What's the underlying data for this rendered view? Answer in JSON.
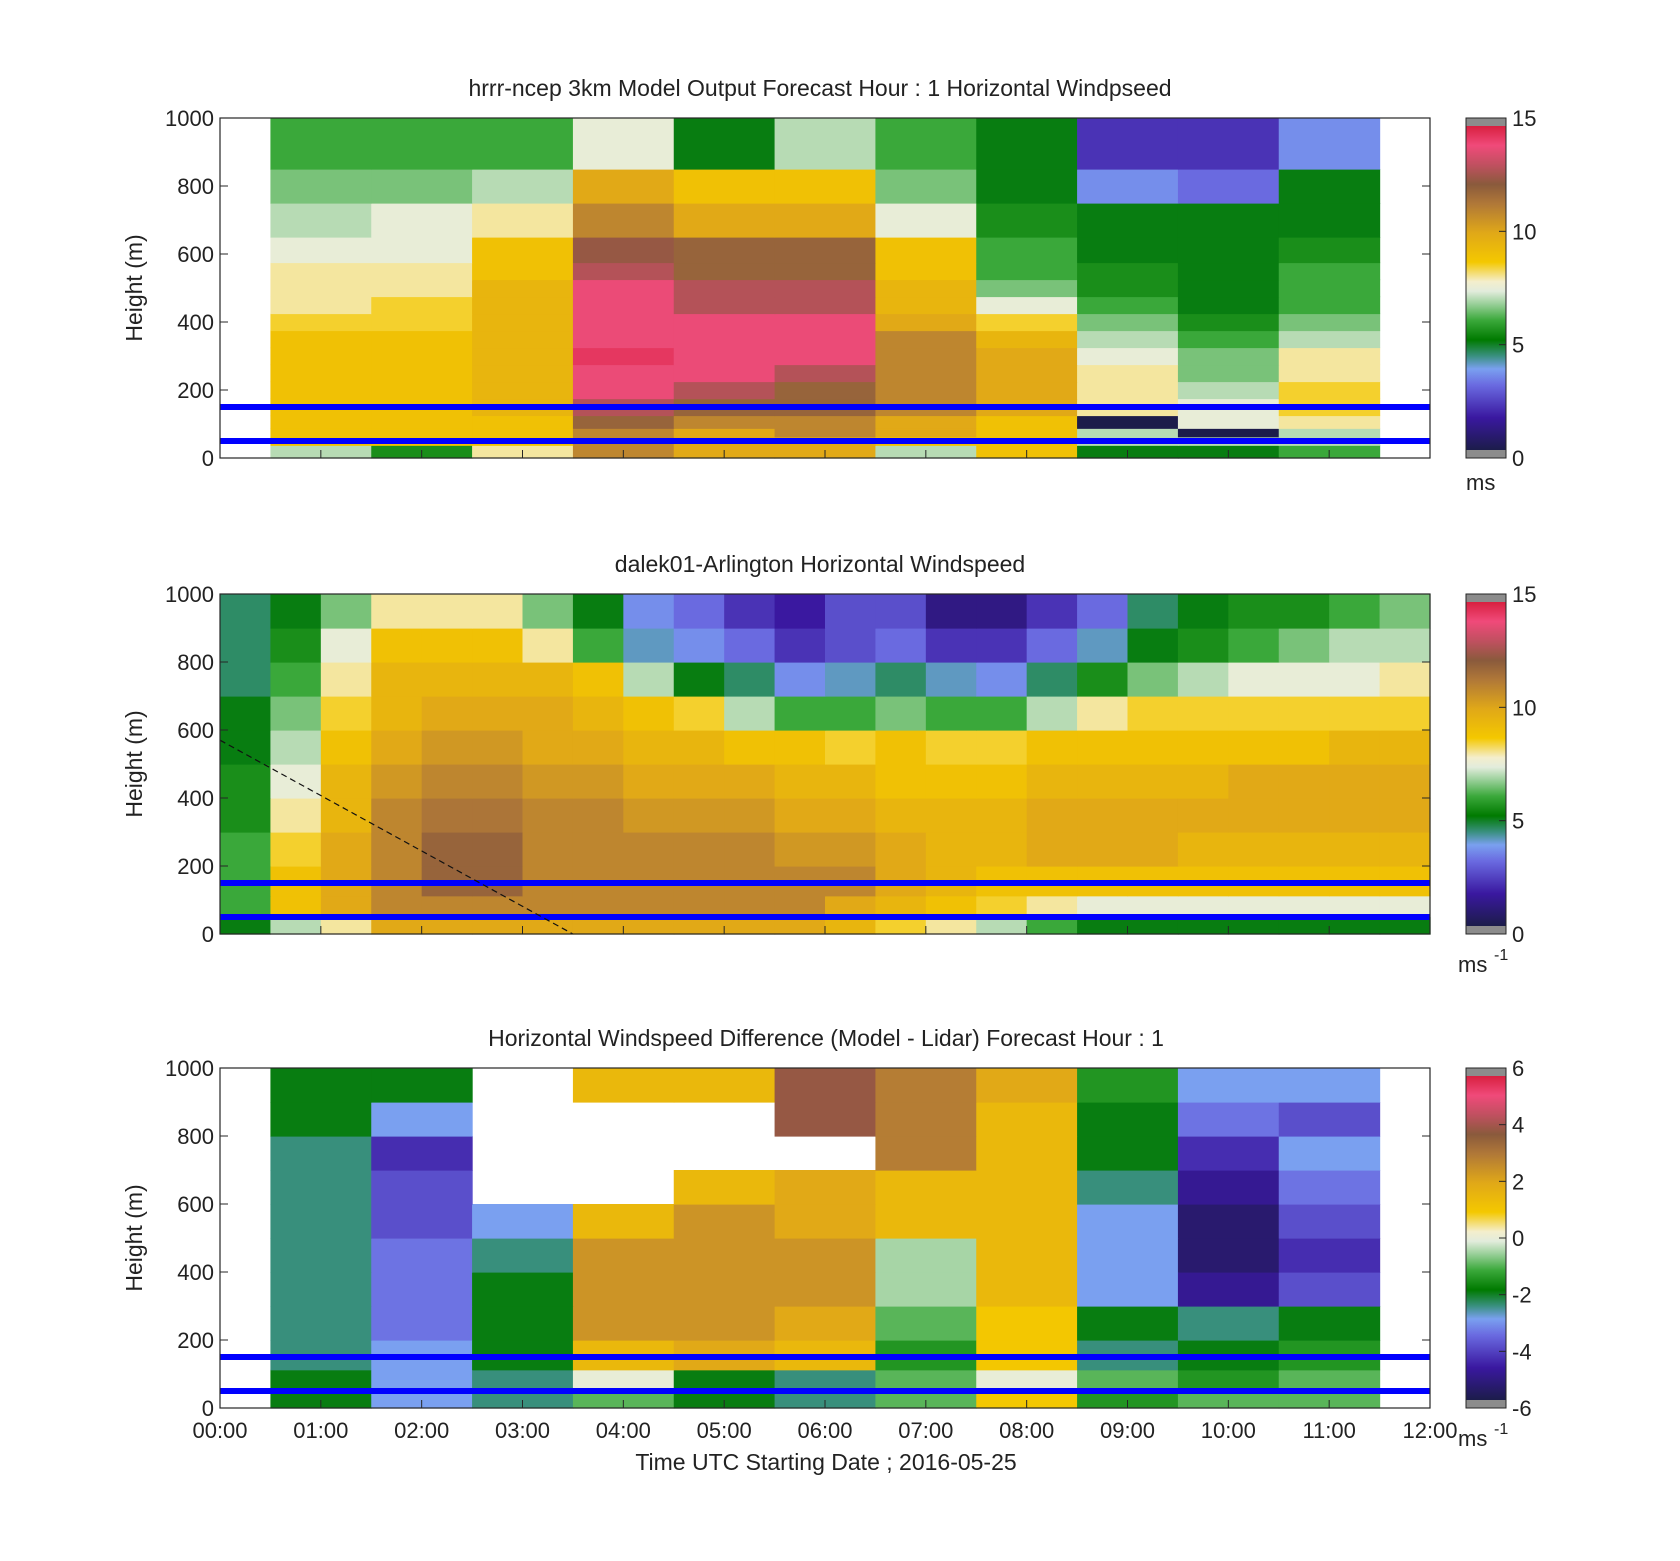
{
  "figure": {
    "xlabel": "Time UTC  Starting Date ; 2016-05-25",
    "xticks": [
      "00:00",
      "01:00",
      "02:00",
      "03:00",
      "04:00",
      "05:00",
      "06:00",
      "07:00",
      "08:00",
      "09:00",
      "10:00",
      "11:00",
      "12:00"
    ]
  },
  "chart_data": [
    {
      "type": "heatmap",
      "title": "hrrr-ncep 3km Model Output   Forecast Hour : 1 Horizontal Windpseed",
      "ylabel": "Height (m)",
      "ylim": [
        0,
        1000
      ],
      "yticks": [
        0,
        200,
        400,
        600,
        800,
        1000
      ],
      "xlim_hours": [
        0,
        12
      ],
      "colorbar": {
        "min": 0,
        "max": 15,
        "ticks": [
          0,
          5,
          10,
          15
        ],
        "unit_label": "ms",
        "unit_sup": ""
      },
      "reference_lines_m": [
        50,
        150
      ],
      "reference_line_color": "#0000ff",
      "x_hours": [
        1,
        2,
        3,
        4,
        5,
        6,
        7,
        8,
        9,
        10,
        11
      ],
      "heights_m": [
        25,
        50,
        75,
        100,
        150,
        200,
        250,
        300,
        350,
        400,
        450,
        500,
        550,
        600,
        700,
        800,
        900
      ],
      "values": [
        [
          7,
          5.5,
          8,
          11,
          10,
          10,
          7,
          9,
          5,
          5,
          6
        ],
        [
          9,
          9,
          9,
          11,
          10,
          10,
          9,
          9,
          7,
          7,
          7
        ],
        [
          9,
          9,
          9,
          11,
          10,
          11,
          10,
          9,
          7,
          0,
          7
        ],
        [
          9,
          9,
          9,
          12,
          11,
          11,
          10,
          9,
          0,
          7.5,
          8
        ],
        [
          9,
          9,
          9.5,
          13,
          12,
          12,
          11,
          10,
          8,
          7.5,
          8.5
        ],
        [
          9,
          9,
          9.5,
          14,
          13,
          12,
          11,
          10,
          8,
          7,
          8.5
        ],
        [
          9,
          9,
          9.5,
          14,
          14,
          13,
          11,
          10,
          8,
          6.5,
          8
        ],
        [
          9,
          9,
          9.5,
          14.5,
          14,
          14,
          11,
          10,
          7.5,
          6.5,
          8
        ],
        [
          9,
          9,
          9.5,
          14,
          14,
          14,
          11,
          9.5,
          7,
          6,
          7
        ],
        [
          8.5,
          8.5,
          9.5,
          14,
          14,
          14,
          10,
          8.5,
          6.5,
          5.5,
          6.5
        ],
        [
          8,
          8.5,
          9.5,
          14,
          13,
          13,
          9.5,
          7.5,
          6,
          5,
          6
        ],
        [
          8,
          8,
          9.5,
          14,
          13,
          13,
          9.5,
          6.5,
          5.5,
          5,
          6
        ],
        [
          8,
          8,
          9,
          13,
          12,
          12,
          9,
          6,
          5.5,
          5,
          6
        ],
        [
          7.5,
          7.5,
          9,
          12.5,
          12,
          12,
          9,
          6,
          5,
          5,
          5.5
        ],
        [
          7,
          7.5,
          8,
          11,
          10,
          10,
          7.5,
          5.5,
          5,
          5,
          5
        ],
        [
          6.5,
          6.5,
          7,
          10,
          9,
          9,
          6.5,
          5,
          3.5,
          3,
          5
        ],
        [
          6,
          6,
          6,
          7.5,
          5,
          7,
          6,
          5,
          2,
          2,
          3.5
        ]
      ]
    },
    {
      "type": "heatmap",
      "title": "dalek01-Arlington  Horizontal Windspeed",
      "ylabel": "Height (m)",
      "ylim": [
        0,
        1000
      ],
      "yticks": [
        0,
        200,
        400,
        600,
        800,
        1000
      ],
      "xlim_hours": [
        0,
        12
      ],
      "colorbar": {
        "min": 0,
        "max": 15,
        "ticks": [
          0,
          5,
          10,
          15
        ],
        "unit_label": "ms",
        "unit_sup": "-1"
      },
      "reference_lines_m": [
        50,
        150
      ],
      "reference_line_color": "#0000ff",
      "annotation_line": {
        "style": "dashed",
        "from_hours_m": [
          0,
          570
        ],
        "to_hours_m": [
          3.5,
          0
        ]
      },
      "x_hours": [
        0.25,
        0.75,
        1.25,
        1.75,
        2.25,
        2.75,
        3.25,
        3.75,
        4.25,
        4.75,
        5.25,
        5.75,
        6.25,
        6.75,
        7.25,
        7.75,
        8.25,
        8.75,
        9.25,
        9.75,
        10.25,
        10.75,
        11.25,
        11.75
      ],
      "heights_m": [
        25,
        75,
        150,
        250,
        350,
        450,
        550,
        650,
        750,
        850,
        950
      ],
      "values": [
        [
          5,
          7,
          8,
          10,
          10,
          10,
          10,
          10,
          10,
          10,
          10,
          10,
          9.5,
          8.5,
          8,
          7,
          6,
          5,
          5,
          5,
          5,
          5,
          5,
          5
        ],
        [
          6,
          9,
          10,
          11,
          11,
          11,
          11,
          11,
          11,
          11,
          11,
          11,
          10,
          9.5,
          9,
          8.5,
          8,
          7.5,
          7.5,
          7.5,
          7.5,
          7.5,
          7.5,
          7.5
        ],
        [
          6,
          9,
          10,
          11,
          12,
          12,
          11,
          11,
          11,
          11,
          11,
          11,
          11,
          10,
          9.5,
          9,
          9,
          9,
          9,
          9,
          9,
          9,
          9,
          9
        ],
        [
          6,
          8.5,
          10,
          11,
          12,
          12,
          11,
          11,
          11,
          11,
          11,
          10.5,
          10.5,
          10,
          9.5,
          9.5,
          10,
          10,
          10,
          9.5,
          9.5,
          9.5,
          9.5,
          9.5
        ],
        [
          5.5,
          8,
          9.5,
          11,
          11.5,
          11.5,
          11,
          11,
          10.5,
          10.5,
          10.5,
          10,
          10,
          9.5,
          9.5,
          9.5,
          10,
          10,
          10,
          10,
          10,
          10,
          10,
          10
        ],
        [
          5.5,
          7.5,
          9.5,
          10.5,
          11,
          11,
          10.5,
          10.5,
          10,
          10,
          10,
          9.5,
          9.5,
          9,
          9,
          9,
          9.5,
          9.5,
          9.5,
          9.5,
          10,
          10,
          10,
          10
        ],
        [
          5,
          7,
          9,
          10,
          10.5,
          10.5,
          10,
          10,
          9.5,
          9.5,
          9,
          9,
          8.5,
          9,
          8.5,
          8.5,
          9,
          9,
          9,
          9,
          9,
          9,
          9.5,
          9.5
        ],
        [
          5,
          6.5,
          8.5,
          9.5,
          10,
          10,
          10,
          9.5,
          9,
          8.5,
          7,
          6,
          6,
          6.5,
          6,
          6,
          7,
          8,
          8.5,
          8.5,
          8.5,
          8.5,
          8.5,
          8.5
        ],
        [
          4.5,
          6,
          8,
          9.5,
          9.5,
          9.5,
          9.5,
          9,
          7,
          5,
          4.5,
          3.5,
          4,
          4.5,
          4,
          3.5,
          4.5,
          5.5,
          6.5,
          7,
          7.5,
          7.5,
          7.5,
          8
        ],
        [
          4.5,
          5.5,
          7.5,
          9,
          9,
          9,
          8,
          6,
          4,
          3.5,
          3,
          2,
          2.5,
          3,
          2,
          2,
          3,
          4,
          5,
          5.5,
          6,
          6.5,
          7,
          7
        ],
        [
          4.5,
          5,
          6.5,
          8,
          8,
          8,
          6.5,
          5,
          3.5,
          3,
          2,
          1.5,
          2.5,
          2.5,
          1,
          1,
          2,
          3,
          4.5,
          5,
          5.5,
          5.5,
          6,
          6.5
        ]
      ]
    },
    {
      "type": "heatmap",
      "title": "Horizontal Windspeed Difference (Model - Lidar) Forecast Hour : 1",
      "ylabel": "Height (m)",
      "ylim": [
        0,
        1000
      ],
      "yticks": [
        0,
        200,
        400,
        600,
        800,
        1000
      ],
      "xlim_hours": [
        0,
        12
      ],
      "colorbar": {
        "min": -6,
        "max": 6,
        "ticks": [
          -6,
          -4,
          -2,
          0,
          2,
          4,
          6
        ],
        "unit_label": "ms",
        "unit_sup": "-1"
      },
      "reference_lines_m": [
        50,
        150
      ],
      "reference_line_color": "#0000ff",
      "x_hours": [
        1,
        2,
        3,
        4,
        5,
        6,
        7,
        8,
        9,
        10,
        11
      ],
      "heights_m": [
        25,
        75,
        150,
        250,
        350,
        450,
        550,
        650,
        750,
        850,
        950
      ],
      "values": [
        [
          -2,
          -3,
          -2.5,
          -1,
          -2,
          -2.5,
          -1,
          1,
          -1.5,
          -1,
          -1
        ],
        [
          -2,
          -3,
          -2.5,
          0,
          -2,
          -2.5,
          -1,
          0,
          -1,
          -1.5,
          -1
        ],
        [
          -2.5,
          -3,
          -2,
          1.5,
          2,
          1.5,
          -1.5,
          1,
          -2.5,
          -2,
          -1.5
        ],
        [
          -2.5,
          -3.5,
          -2,
          2.5,
          2.5,
          2,
          -1,
          1,
          -2,
          -2.5,
          -2
        ],
        [
          -2.5,
          -3.5,
          -2,
          2.5,
          2.5,
          2.5,
          -0.5,
          1.5,
          -3,
          -5,
          -4
        ],
        [
          -2.5,
          -3.5,
          -2.5,
          2.5,
          2.5,
          2.5,
          -0.5,
          1.5,
          -3,
          -5.5,
          -4.5
        ],
        [
          -2.5,
          -4,
          -3,
          1.5,
          2.5,
          2,
          1.5,
          1.5,
          -3,
          -5.5,
          -4
        ],
        [
          -2.5,
          -4,
          null,
          null,
          1.5,
          2,
          1.5,
          1.5,
          -2.5,
          -5,
          -3.5
        ],
        [
          -2.5,
          -4.5,
          null,
          null,
          null,
          null,
          3,
          1.5,
          -2,
          -4.5,
          -3
        ],
        [
          -2,
          -3,
          null,
          null,
          null,
          4,
          3,
          1.5,
          -2,
          -3.5,
          -4
        ],
        [
          -2,
          -2,
          null,
          1.5,
          1.5,
          4,
          3,
          2,
          -1.5,
          -3,
          -3
        ]
      ]
    }
  ]
}
